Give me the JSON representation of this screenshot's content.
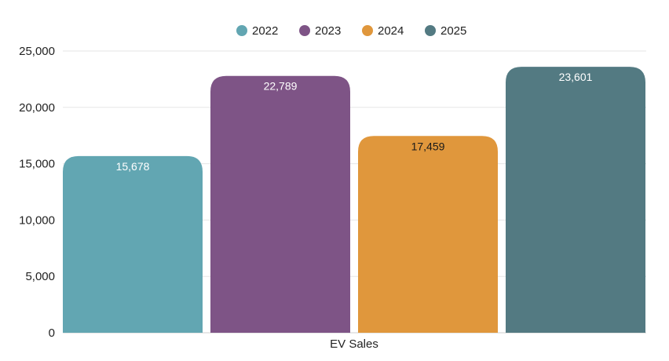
{
  "chart_data": {
    "type": "bar",
    "categories": [
      "EV Sales"
    ],
    "series": [
      {
        "name": "2022",
        "values": [
          15678
        ],
        "label": "15,678",
        "color": "#62a6b2",
        "label_color": "#ffffff"
      },
      {
        "name": "2023",
        "values": [
          22789
        ],
        "label": "22,789",
        "color": "#7e5486",
        "label_color": "#ffffff"
      },
      {
        "name": "2024",
        "values": [
          17459
        ],
        "label": "17,459",
        "color": "#e0973c",
        "label_color": "#1a1a1a"
      },
      {
        "name": "2025",
        "values": [
          23601
        ],
        "label": "23,601",
        "color": "#537a82",
        "label_color": "#ffffff"
      }
    ],
    "ylim": [
      0,
      25000
    ],
    "yticks": [
      0,
      5000,
      10000,
      15000,
      20000,
      25000
    ],
    "ytick_labels": [
      "0",
      "5,000",
      "10,000",
      "15,000",
      "20,000",
      "25,000"
    ],
    "title": "",
    "xlabel": "",
    "ylabel": "",
    "legend_position": "top-center",
    "grid": true,
    "grid_color": "#e6e6e6",
    "axis_color": "#cfcfcf"
  }
}
